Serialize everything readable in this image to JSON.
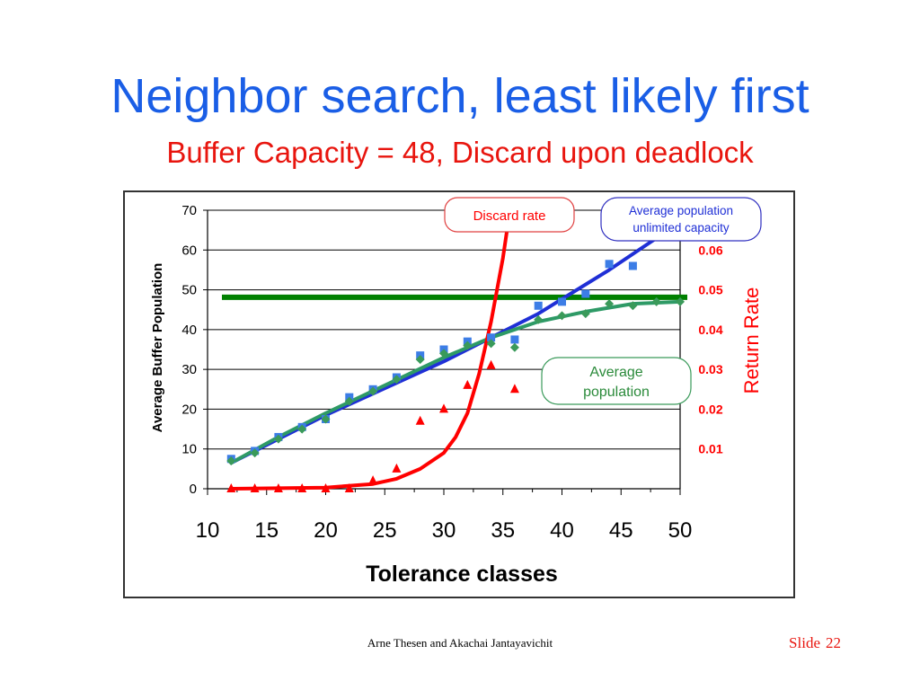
{
  "slide": {
    "title": "Neighbor search, least likely first",
    "subtitle": "Buffer Capacity = 48, Discard upon deadlock",
    "footer": "Arne Thesen and Akachai Jantayavichit",
    "slide_label": "Slide",
    "slide_number": "22"
  },
  "colors": {
    "title": "#1a5ee6",
    "subtitle": "#e8150e",
    "buffer_line": "#008000",
    "population_fit": "#1f2fd6",
    "population_points": "#3c7de6",
    "average_fit": "#2e9a66",
    "average_points": "#3a9a5a",
    "discard": "#ff0000"
  },
  "chart_data": {
    "type": "scatter",
    "xlabel": "Tolerance classes",
    "ylabel": "Average Buffer Population",
    "y2label": "Return Rate",
    "xlim": [
      10,
      50
    ],
    "ylim": [
      0,
      70
    ],
    "y2lim": [
      0,
      0.07
    ],
    "x_ticks": [
      10,
      15,
      20,
      25,
      30,
      35,
      40,
      45,
      50
    ],
    "y_ticks": [
      0,
      10,
      20,
      30,
      40,
      50,
      60,
      70
    ],
    "y2_ticks": [
      0.01,
      0.02,
      0.03,
      0.04,
      0.05,
      0.06
    ],
    "grid": "horizontal",
    "buffer_capacity": 48,
    "series": [
      {
        "name": "Average population unlimited capacity",
        "kind": "points",
        "marker": "square",
        "x": [
          12,
          14,
          16,
          18,
          20,
          22,
          24,
          26,
          28,
          30,
          32,
          34,
          36,
          38,
          40,
          42,
          44,
          46
        ],
        "y": [
          7.5,
          9.5,
          13,
          15.5,
          17.5,
          23,
          25,
          28,
          33.5,
          35,
          37,
          38,
          37.5,
          46,
          47,
          49,
          56.5,
          56
        ]
      },
      {
        "name": "Average population unlimited capacity",
        "kind": "fit",
        "x": [
          12,
          20,
          30,
          38,
          44,
          48
        ],
        "y": [
          6.5,
          18.5,
          32,
          44,
          55,
          63
        ]
      },
      {
        "name": "Average population",
        "kind": "points",
        "marker": "diamond",
        "x": [
          12,
          14,
          16,
          18,
          20,
          22,
          24,
          26,
          28,
          30,
          32,
          34,
          36,
          38,
          40,
          42,
          44,
          46,
          48,
          50
        ],
        "y": [
          7,
          9,
          12.5,
          15,
          17.5,
          22,
          24.5,
          27.5,
          32.5,
          34,
          36,
          36.5,
          35.5,
          42.5,
          43.5,
          44,
          46.5,
          46,
          47,
          47
        ]
      },
      {
        "name": "Average population",
        "kind": "fit",
        "x": [
          12,
          16,
          20,
          25,
          30,
          34,
          38,
          42,
          46,
          50
        ],
        "y": [
          6.5,
          13,
          19,
          26,
          33,
          38,
          42,
          44.5,
          46.5,
          47
        ]
      },
      {
        "name": "Discard rate",
        "kind": "points",
        "marker": "triangle",
        "axis": "y2",
        "x": [
          12,
          14,
          16,
          18,
          20,
          22,
          24,
          26,
          28,
          30,
          32,
          34,
          36
        ],
        "y": [
          0,
          0,
          0,
          0,
          0,
          0,
          0.002,
          0.005,
          0.017,
          0.02,
          0.026,
          0.031,
          0.025
        ]
      },
      {
        "name": "Discard rate",
        "kind": "fit",
        "axis": "y2",
        "x": [
          12,
          20,
          24,
          26,
          28,
          30,
          31,
          32,
          33,
          34,
          35,
          35.6
        ],
        "y": [
          0,
          0.0003,
          0.0012,
          0.0025,
          0.005,
          0.009,
          0.013,
          0.019,
          0.029,
          0.042,
          0.058,
          0.07
        ]
      }
    ],
    "annotations": {
      "discard": "Discard rate",
      "unlimited": [
        "Average population",
        "unlimited capacity"
      ],
      "average": [
        "Average",
        "population"
      ]
    }
  }
}
